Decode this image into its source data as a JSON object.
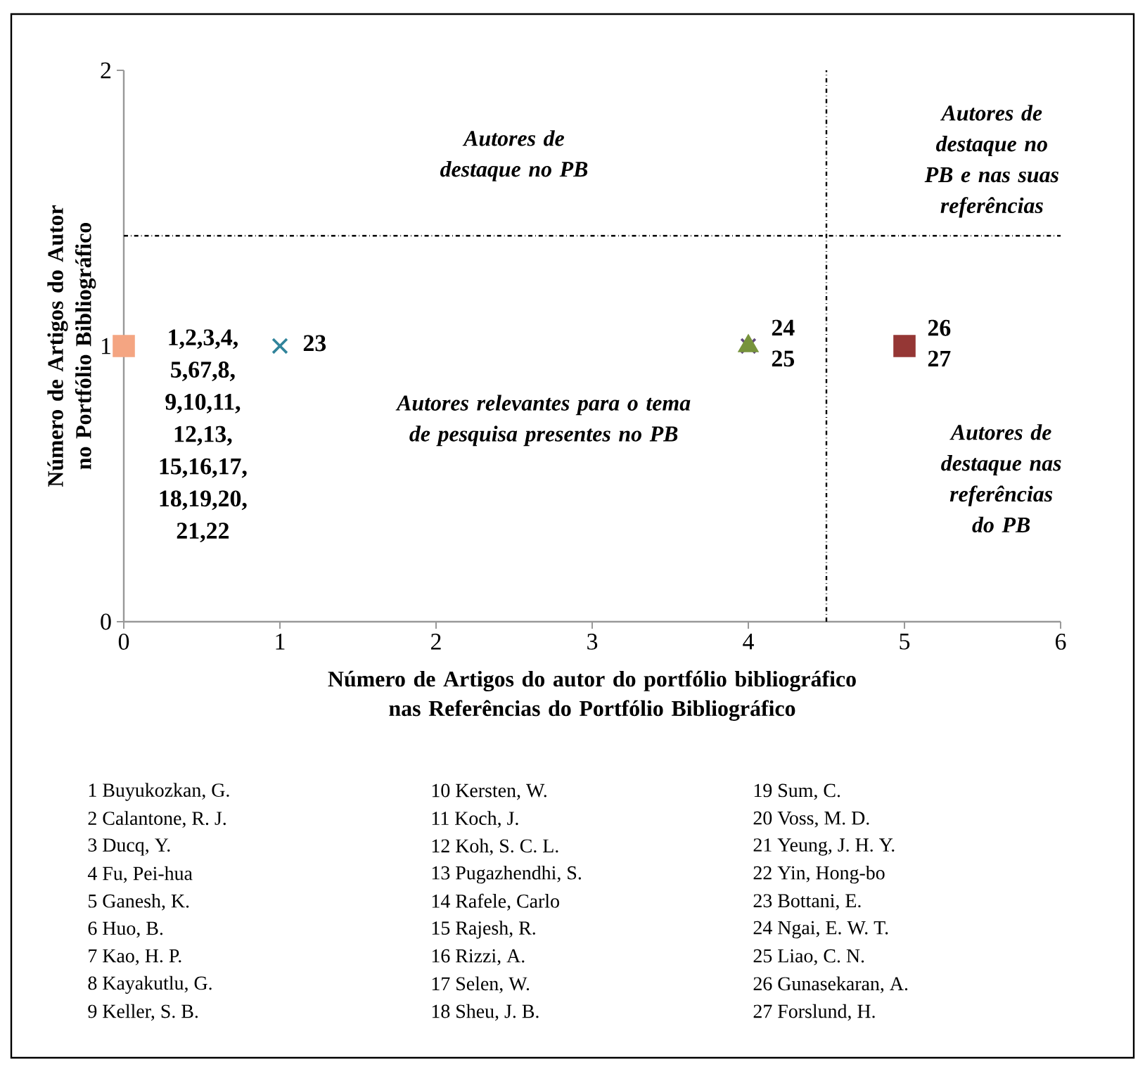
{
  "chart_data": {
    "type": "scatter",
    "xlabel": "Número de Artigos do autor do portfólio bibliográfico nas Referências do Portfólio Bibliográfico",
    "ylabel": "Número de Artigos do Autor no Portfólio Bibliográfico",
    "xlim": [
      0,
      6
    ],
    "ylim": [
      0,
      2
    ],
    "xticks": [
      0,
      1,
      2,
      3,
      4,
      5,
      6
    ],
    "yticks": [
      0,
      1,
      2
    ],
    "series": [
      {
        "color": "#f4a582",
        "x": [
          0
        ],
        "values": [
          1
        ],
        "marker": "square"
      },
      {
        "color": "#31849b",
        "x": [
          1
        ],
        "values": [
          1
        ],
        "marker": "cross"
      },
      {
        "color": "#604a7b",
        "x": [
          4
        ],
        "values": [
          1
        ],
        "marker": "cross"
      },
      {
        "color": "#77933c",
        "x": [
          4
        ],
        "values": [
          1
        ],
        "marker": "triangle"
      },
      {
        "color": "#953735",
        "x": [
          5
        ],
        "values": [
          1
        ],
        "marker": "square"
      }
    ],
    "ref_lines": [
      {
        "axis": "x",
        "value": 4.5,
        "line_style": "dashdot",
        "color": "#000000"
      },
      {
        "axis": "y",
        "value": 1.4,
        "line_style": "dashdot",
        "color": "#000000"
      }
    ],
    "annotations": [
      "Autores de destaque no PB",
      "Autores de destaque no PB e nas suas referências",
      "Autores relevantes para o tema de pesquisa presentes no PB",
      "Autores de destaque nas referências do PB",
      "1 Buyukozkan, G.",
      "2 Calantone, R. J.",
      "3 Ducq, Y.",
      "4 Fu, Pei-hua",
      "5 Ganesh, K.",
      "6 Huo, B.",
      "7 Kao, H. P.",
      "8 Kayakutlu, G.",
      "9 Keller, S. B.",
      "10 Kersten, W.",
      "11 Koch, J.",
      "12 Koh, S. C. L.",
      "13 Pugazhendhi, S.",
      "14 Rafele, Carlo",
      "15 Rajesh, R.",
      "16 Rizzi, A.",
      "17 Selen, W.",
      "18 Sheu, J. B.",
      "19 Sum, C.",
      "20 Voss, M. D.",
      "21 Yeung, J. H. Y.",
      "22 Yin, Hong-bo",
      "23 Bottani, E.",
      "24 Ngai, E. W. T.",
      "25 Liao, C. N.",
      "26 Gunasekaran, A.",
      "27 Forslund, H.",
      {
        "text": "23",
        "x": 1,
        "y": 1
      },
      {
        "text": "24 25",
        "x": 4,
        "y": 1
      },
      {
        "text": "26 27",
        "x": 5,
        "y": 1
      },
      {
        "text": "1,2,3,4,",
        "x": 0,
        "y": 1
      },
      "5,67,8,",
      "9,10,11,",
      "12,13,",
      "15,16,17,",
      "18,19,20,",
      "21,22"
    ]
  }
}
